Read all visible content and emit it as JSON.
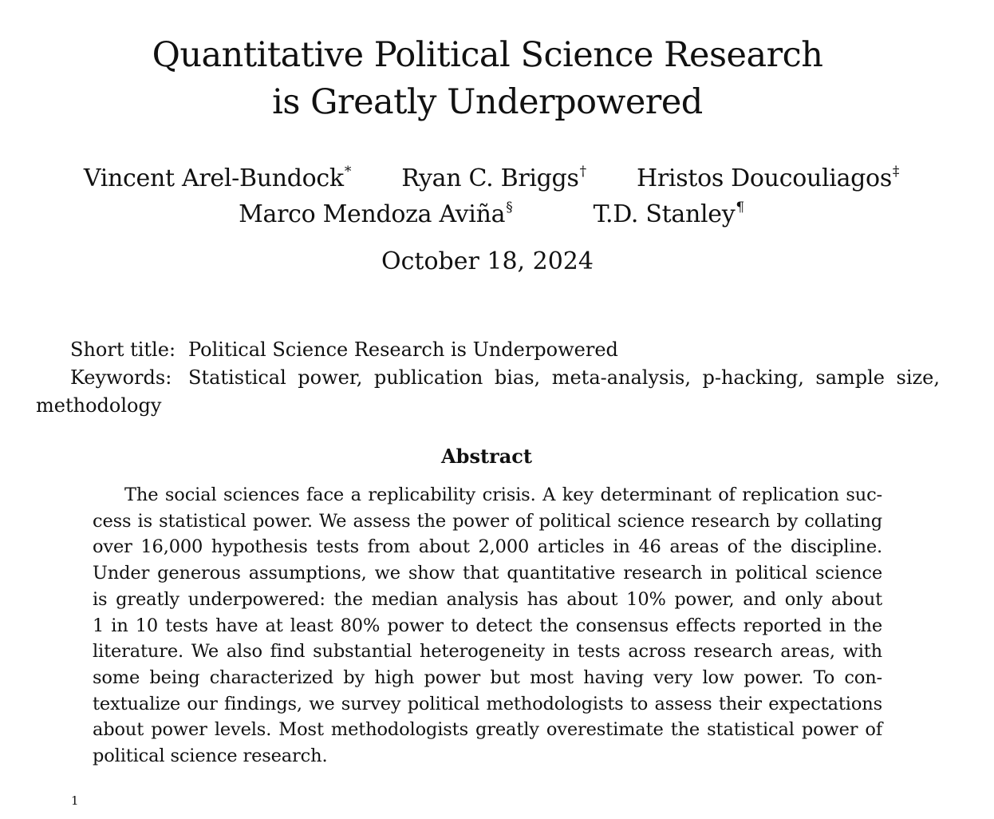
{
  "paper": {
    "title_lines": [
      "Quantitative Political Science Research",
      "is Greatly Underpowered"
    ],
    "authors": [
      {
        "name": "Vincent Arel-Bundock",
        "mark": "*"
      },
      {
        "name": "Ryan C. Briggs",
        "mark": "†"
      },
      {
        "name": "Hristos Doucouliagos",
        "mark": "‡"
      },
      {
        "name": "Marco Mendoza Aviña",
        "mark": "§"
      },
      {
        "name": "T.D. Stanley",
        "mark": "¶"
      }
    ],
    "date": "October 18, 2024",
    "short_title_label": "Short title:",
    "short_title": "Political Science Research is Underpowered",
    "keywords_label": "Keywords:",
    "keywords_line1": "Statistical power, publication bias, meta-analysis, p-hacking, sample size,",
    "keywords_line2": "methodology",
    "abstract_heading": "Abstract",
    "abstract_lines": [
      "The social sciences face a replicability crisis. A key determinant of replication suc-",
      "cess is statistical power. We assess the power of political science research by collating",
      "over 16,000 hypothesis tests from about 2,000 articles in 46 areas of the discipline.",
      "Under generous assumptions, we show that quantitative research in political science",
      "is greatly underpowered: the median analysis has about 10% power, and only about",
      "1 in 10 tests have at least 80% power to detect the consensus effects reported in the",
      "literature. We also find substantial heterogeneity in tests across research areas, with",
      "some being characterized by high power but most having very low power. To con-",
      "textualize our findings, we survey political methodologists to assess their expectations",
      "about power levels. Most methodologists greatly overestimate the statistical power of",
      "political science research."
    ],
    "footnote_marker": "1"
  }
}
